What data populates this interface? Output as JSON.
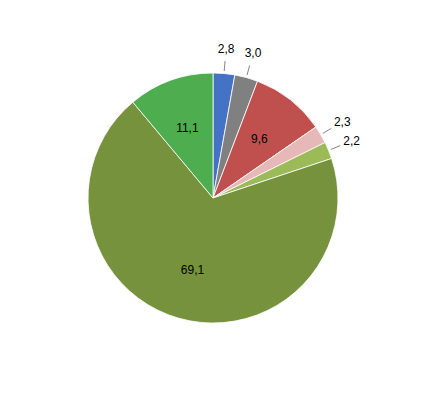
{
  "chart_data": {
    "type": "pie",
    "values": [
      2.8,
      3.0,
      9.6,
      2.3,
      2.2,
      69.1,
      11.1
    ],
    "value_labels": [
      "2,8",
      "3,0",
      "9,6",
      "2,3",
      "2,2",
      "69,1",
      "11,1"
    ],
    "colors": [
      "#4472c4",
      "#808080",
      "#c0504d",
      "#e6b8b7",
      "#9bbb59",
      "#76923c",
      "#4ead4e"
    ],
    "data_labels": true
  }
}
